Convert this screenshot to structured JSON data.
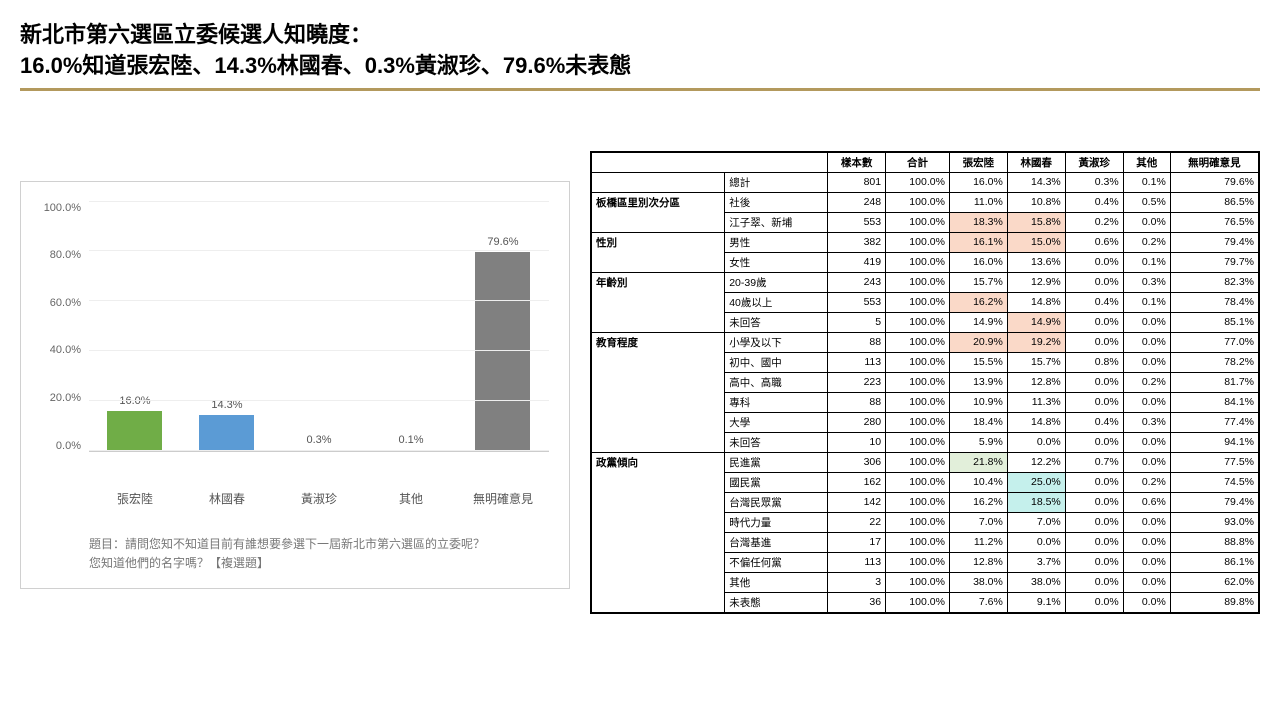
{
  "title_line1": "新北市第六選區立委候選人知曉度：",
  "title_line2": "16.0%知道張宏陸、14.3%林國春、0.3%黃淑珍、79.6%未表態",
  "divider_color": "#b3995d",
  "chart": {
    "type": "bar",
    "ylim_max": 100,
    "ytick_step": 20,
    "yticks": [
      "100.0%",
      "80.0%",
      "60.0%",
      "40.0%",
      "20.0%",
      "0.0%"
    ],
    "categories": [
      "張宏陸",
      "林國春",
      "黃淑珍",
      "其他",
      "無明確意見"
    ],
    "values": [
      16.0,
      14.3,
      0.3,
      0.1,
      79.6
    ],
    "value_labels": [
      "16.0%",
      "14.3%",
      "0.3%",
      "0.1%",
      "79.6%"
    ],
    "colors": [
      "#70ad47",
      "#5b9bd5",
      "#b0b0b0",
      "#b0b0b0",
      "#808080"
    ],
    "caption_l1": "題目：請問您知不知道目前有誰想要參選下一屆新北市第六選區的立委呢？",
    "caption_l2": "您知道他們的名字嗎？【複選題】"
  },
  "table": {
    "headers": [
      "",
      "",
      "樣本數",
      "合計",
      "張宏陸",
      "林國春",
      "黃淑珍",
      "其他",
      "無明確意見"
    ],
    "highlight_colors": {
      "orange": "#fad9c8",
      "green": "#e2efda",
      "cyan": "#c5f0ec"
    },
    "rows": [
      {
        "cat": "",
        "sub": "總計",
        "n": "801",
        "tot": "100.0%",
        "a": "16.0%",
        "b": "14.3%",
        "c": "0.3%",
        "d": "0.1%",
        "e": "79.6%",
        "top": true
      },
      {
        "cat": "板橋區里別次分區",
        "catspan": 2,
        "sub": "社後",
        "n": "248",
        "tot": "100.0%",
        "a": "11.0%",
        "b": "10.8%",
        "c": "0.4%",
        "d": "0.5%",
        "e": "86.5%",
        "top": true
      },
      {
        "sub": "江子翠、新埔",
        "n": "553",
        "tot": "100.0%",
        "a": "18.3%",
        "ha": "orange",
        "b": "15.8%",
        "hb": "orange",
        "c": "0.2%",
        "d": "0.0%",
        "e": "76.5%"
      },
      {
        "cat": "性別",
        "catspan": 2,
        "sub": "男性",
        "n": "382",
        "tot": "100.0%",
        "a": "16.1%",
        "ha": "orange",
        "b": "15.0%",
        "hb": "orange",
        "c": "0.6%",
        "d": "0.2%",
        "e": "79.4%",
        "top": true
      },
      {
        "sub": "女性",
        "n": "419",
        "tot": "100.0%",
        "a": "16.0%",
        "b": "13.6%",
        "c": "0.0%",
        "d": "0.1%",
        "e": "79.7%"
      },
      {
        "cat": "年齡別",
        "catspan": 3,
        "sub": "20-39歲",
        "n": "243",
        "tot": "100.0%",
        "a": "15.7%",
        "b": "12.9%",
        "c": "0.0%",
        "d": "0.3%",
        "e": "82.3%",
        "top": true
      },
      {
        "sub": "40歲以上",
        "n": "553",
        "tot": "100.0%",
        "a": "16.2%",
        "ha": "orange",
        "b": "14.8%",
        "c": "0.4%",
        "d": "0.1%",
        "e": "78.4%"
      },
      {
        "sub": "未回答",
        "n": "5",
        "tot": "100.0%",
        "a": "14.9%",
        "b": "14.9%",
        "hb": "orange",
        "c": "0.0%",
        "d": "0.0%",
        "e": "85.1%"
      },
      {
        "cat": "教育程度",
        "catspan": 6,
        "sub": "小學及以下",
        "n": "88",
        "tot": "100.0%",
        "a": "20.9%",
        "ha": "orange",
        "b": "19.2%",
        "hb": "orange",
        "c": "0.0%",
        "d": "0.0%",
        "e": "77.0%",
        "top": true
      },
      {
        "sub": "初中、國中",
        "n": "113",
        "tot": "100.0%",
        "a": "15.5%",
        "b": "15.7%",
        "c": "0.8%",
        "d": "0.0%",
        "e": "78.2%"
      },
      {
        "sub": "高中、高職",
        "n": "223",
        "tot": "100.0%",
        "a": "13.9%",
        "b": "12.8%",
        "c": "0.0%",
        "d": "0.2%",
        "e": "81.7%"
      },
      {
        "sub": "專科",
        "n": "88",
        "tot": "100.0%",
        "a": "10.9%",
        "b": "11.3%",
        "c": "0.0%",
        "d": "0.0%",
        "e": "84.1%"
      },
      {
        "sub": "大學",
        "n": "280",
        "tot": "100.0%",
        "a": "18.4%",
        "b": "14.8%",
        "c": "0.4%",
        "d": "0.3%",
        "e": "77.4%"
      },
      {
        "sub": "未回答",
        "n": "10",
        "tot": "100.0%",
        "a": "5.9%",
        "b": "0.0%",
        "c": "0.0%",
        "d": "0.0%",
        "e": "94.1%"
      },
      {
        "cat": "政黨傾向",
        "catspan": 8,
        "sub": "民進黨",
        "n": "306",
        "tot": "100.0%",
        "a": "21.8%",
        "ha": "green",
        "b": "12.2%",
        "c": "0.7%",
        "d": "0.0%",
        "e": "77.5%",
        "top": true
      },
      {
        "sub": "國民黨",
        "n": "162",
        "tot": "100.0%",
        "a": "10.4%",
        "b": "25.0%",
        "hb": "cyan",
        "c": "0.0%",
        "d": "0.2%",
        "e": "74.5%"
      },
      {
        "sub": "台灣民眾黨",
        "n": "142",
        "tot": "100.0%",
        "a": "16.2%",
        "b": "18.5%",
        "hb": "cyan",
        "c": "0.0%",
        "d": "0.6%",
        "e": "79.4%"
      },
      {
        "sub": "時代力量",
        "n": "22",
        "tot": "100.0%",
        "a": "7.0%",
        "b": "7.0%",
        "c": "0.0%",
        "d": "0.0%",
        "e": "93.0%"
      },
      {
        "sub": "台灣基進",
        "n": "17",
        "tot": "100.0%",
        "a": "11.2%",
        "b": "0.0%",
        "c": "0.0%",
        "d": "0.0%",
        "e": "88.8%"
      },
      {
        "sub": "不偏任何黨",
        "n": "113",
        "tot": "100.0%",
        "a": "12.8%",
        "b": "3.7%",
        "c": "0.0%",
        "d": "0.0%",
        "e": "86.1%"
      },
      {
        "sub": "其他",
        "n": "3",
        "tot": "100.0%",
        "a": "38.0%",
        "b": "38.0%",
        "c": "0.0%",
        "d": "0.0%",
        "e": "62.0%"
      },
      {
        "sub": "未表態",
        "n": "36",
        "tot": "100.0%",
        "a": "7.6%",
        "b": "9.1%",
        "c": "0.0%",
        "d": "0.0%",
        "e": "89.8%"
      }
    ]
  }
}
